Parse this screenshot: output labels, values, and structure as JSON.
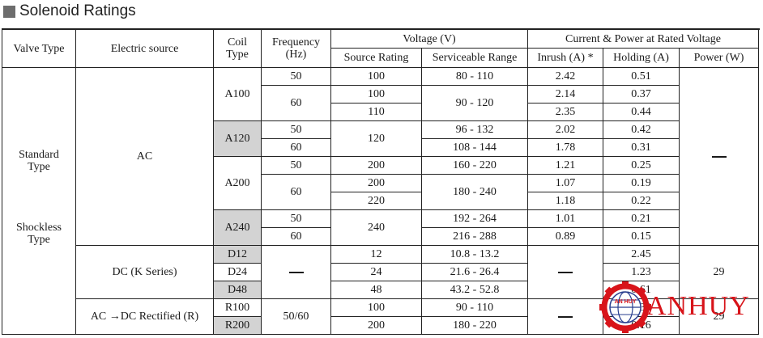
{
  "title": "Solenoid Ratings",
  "headers": {
    "valve_type": "Valve Type",
    "electric_source": "Electric source",
    "coil_type": [
      "Coil",
      "Type"
    ],
    "frequency": [
      "Frequency",
      "(Hz)"
    ],
    "voltage": "Voltage (V)",
    "source_rating": "Source Rating",
    "serviceable_range": "Serviceable Range",
    "current_power": "Current & Power at Rated Voltage",
    "inrush": "Inrush (A) *",
    "holding": "Holding (A)",
    "power": "Power (W)"
  },
  "valve_types": {
    "standard": [
      "Standard",
      "Type"
    ],
    "shockless": [
      "Shockless",
      "Type"
    ]
  },
  "sources": {
    "ac": "AC",
    "dc": "DC (K Series)",
    "acdc_pre": "AC ",
    "acdc_arrow": "→",
    "acdc_post": "DC Rectified (R)"
  },
  "ac_rows": [
    {
      "coil": "A100",
      "freq": "50",
      "src": "100",
      "range": "80 - 110",
      "inrush": "2.42",
      "holding": "0.51"
    },
    {
      "coil": "",
      "freq": "60",
      "src": "100",
      "range": "90 - 120",
      "inrush": "2.14",
      "holding": "0.37"
    },
    {
      "coil": "",
      "freq": "",
      "src": "110",
      "range": "",
      "inrush": "2.35",
      "holding": "0.44"
    },
    {
      "coil": "A120",
      "freq": "50",
      "src": "120",
      "range": "96 - 132",
      "inrush": "2.02",
      "holding": "0.42"
    },
    {
      "coil": "",
      "freq": "60",
      "src": "",
      "range": "108 - 144",
      "inrush": "1.78",
      "holding": "0.31"
    },
    {
      "coil": "A200",
      "freq": "50",
      "src": "200",
      "range": "160 - 220",
      "inrush": "1.21",
      "holding": "0.25"
    },
    {
      "coil": "",
      "freq": "60",
      "src": "200",
      "range": "180 - 240",
      "inrush": "1.07",
      "holding": "0.19"
    },
    {
      "coil": "",
      "freq": "",
      "src": "220",
      "range": "",
      "inrush": "1.18",
      "holding": "0.22"
    },
    {
      "coil": "A240",
      "freq": "50",
      "src": "240",
      "range": "192 - 264",
      "inrush": "1.01",
      "holding": "0.21"
    },
    {
      "coil": "",
      "freq": "60",
      "src": "",
      "range": "216 - 288",
      "inrush": "0.89",
      "holding": "0.15"
    }
  ],
  "dc_rows": [
    {
      "coil": "D12",
      "src": "12",
      "range": "10.8 - 13.2",
      "holding": "2.45"
    },
    {
      "coil": "D24",
      "src": "24",
      "range": "21.6 - 26.4",
      "holding": "1.23"
    },
    {
      "coil": "D48",
      "src": "48",
      "range": "43.2 - 52.8",
      "holding": "0.61"
    }
  ],
  "dc_power": "29",
  "r_rows": [
    {
      "coil": "R100",
      "src": "100",
      "range": "90 - 110",
      "holding": "0.33"
    },
    {
      "coil": "R200",
      "src": "200",
      "range": "180 - 220",
      "holding": "0.16"
    }
  ],
  "r_freq": "50/60",
  "r_power": "29",
  "logo": {
    "name": "ANHUY",
    "badge": "AN HUY",
    "colors": {
      "red": "#d8141a",
      "blue": "#2a3f8f"
    }
  },
  "colors": {
    "shaded_cell": "#d3d3d3",
    "title_square": "#6d6d6d"
  }
}
